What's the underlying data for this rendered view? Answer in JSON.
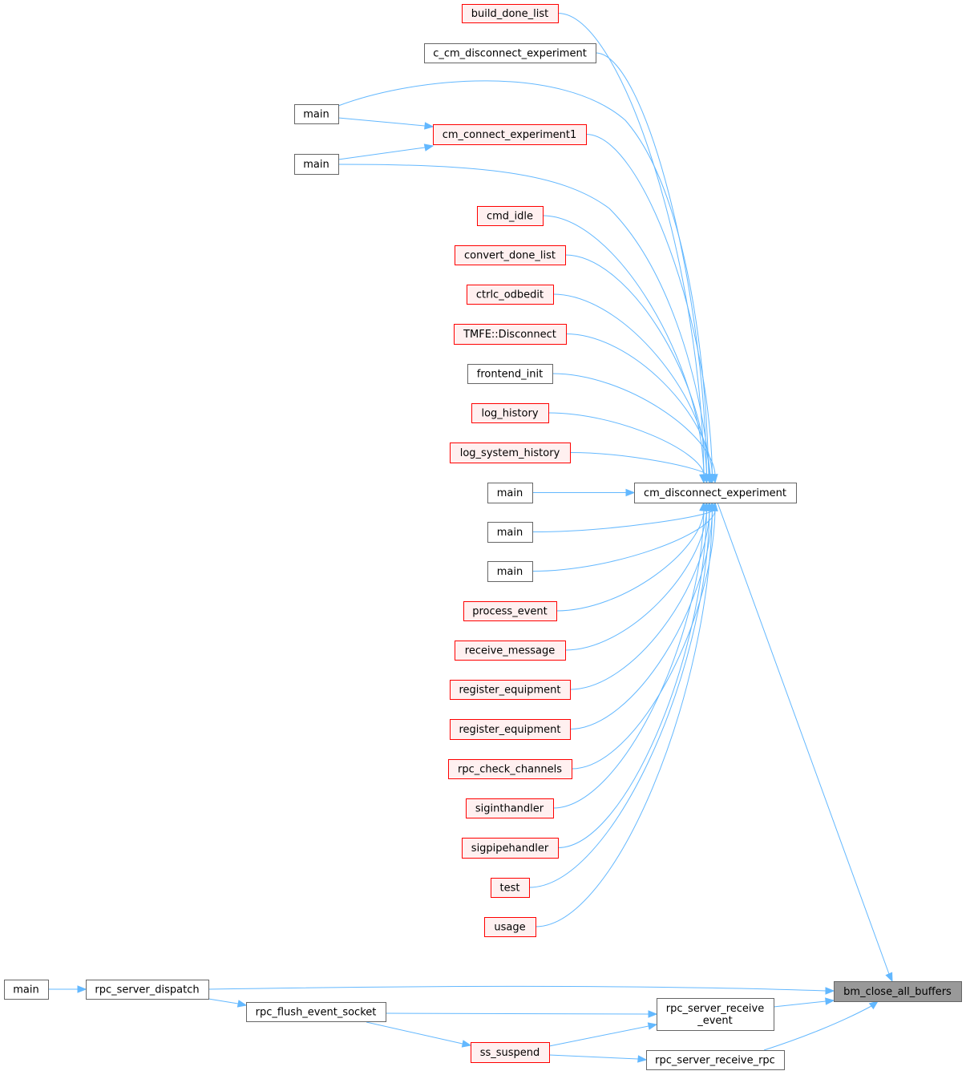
{
  "nodes": [
    {
      "lines": [
        "build_done_list"
      ]
    },
    {
      "lines": [
        "c_cm_disconnect_experiment"
      ]
    },
    {
      "lines": [
        "main"
      ]
    },
    {
      "lines": [
        "cm_connect_experiment1"
      ]
    },
    {
      "lines": [
        "main"
      ]
    },
    {
      "lines": [
        "cmd_idle"
      ]
    },
    {
      "lines": [
        "convert_done_list"
      ]
    },
    {
      "lines": [
        "ctrlc_odbedit"
      ]
    },
    {
      "lines": [
        "TMFE::Disconnect"
      ]
    },
    {
      "lines": [
        "frontend_init"
      ]
    },
    {
      "lines": [
        "log_history"
      ]
    },
    {
      "lines": [
        "log_system_history"
      ]
    },
    {
      "lines": [
        "main"
      ]
    },
    {
      "lines": [
        "main"
      ]
    },
    {
      "lines": [
        "main"
      ]
    },
    {
      "lines": [
        "process_event"
      ]
    },
    {
      "lines": [
        "receive_message"
      ]
    },
    {
      "lines": [
        "register_equipment"
      ]
    },
    {
      "lines": [
        "register_equipment"
      ]
    },
    {
      "lines": [
        "rpc_check_channels"
      ]
    },
    {
      "lines": [
        "siginthandler"
      ]
    },
    {
      "lines": [
        "sigpipehandler"
      ]
    },
    {
      "lines": [
        "test"
      ]
    },
    {
      "lines": [
        "usage"
      ]
    },
    {
      "lines": [
        "cm_disconnect_experiment"
      ]
    },
    {
      "lines": [
        "bm_close_all_buffers"
      ]
    },
    {
      "lines": [
        "main"
      ]
    },
    {
      "lines": [
        "rpc_server_dispatch"
      ]
    },
    {
      "lines": [
        "rpc_flush_event_socket"
      ]
    },
    {
      "lines": [
        "rpc_server_receive",
        "_event"
      ]
    },
    {
      "lines": [
        "ss_suspend"
      ]
    },
    {
      "lines": [
        "rpc_server_receive_rpc"
      ]
    }
  ]
}
